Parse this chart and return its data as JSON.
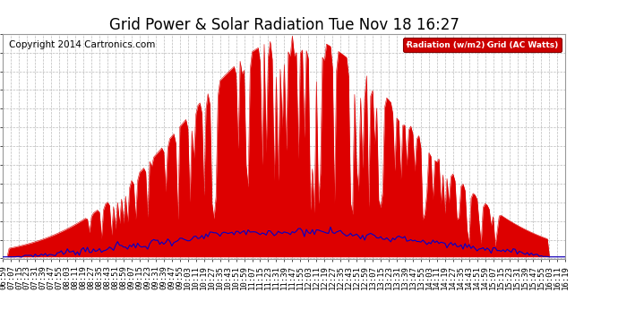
{
  "title": "Grid Power & Solar Radiation Tue Nov 18 16:27",
  "copyright": "Copyright 2014 Cartronics.com",
  "legend_labels": [
    "Radiation (w/m2)",
    "Grid (AC Watts)"
  ],
  "legend_colors": [
    "#0000bb",
    "#cc0000"
  ],
  "background_color": "#ffffff",
  "plot_bg_color": "#ffffff",
  "grid_color": "#bbbbbb",
  "y_ticks": [
    -24.0,
    276.5,
    577.0,
    877.4,
    1177.9,
    1478.4,
    1778.8,
    2079.3,
    2379.8,
    2680.2,
    2980.7,
    3281.2,
    3581.6
  ],
  "y_min": -24.0,
  "y_max": 3581.6,
  "red_fill_color": "#dd0000",
  "blue_line_color": "#0000cc",
  "title_fontsize": 12,
  "copyright_fontsize": 7.5,
  "tick_fontsize": 6.5
}
